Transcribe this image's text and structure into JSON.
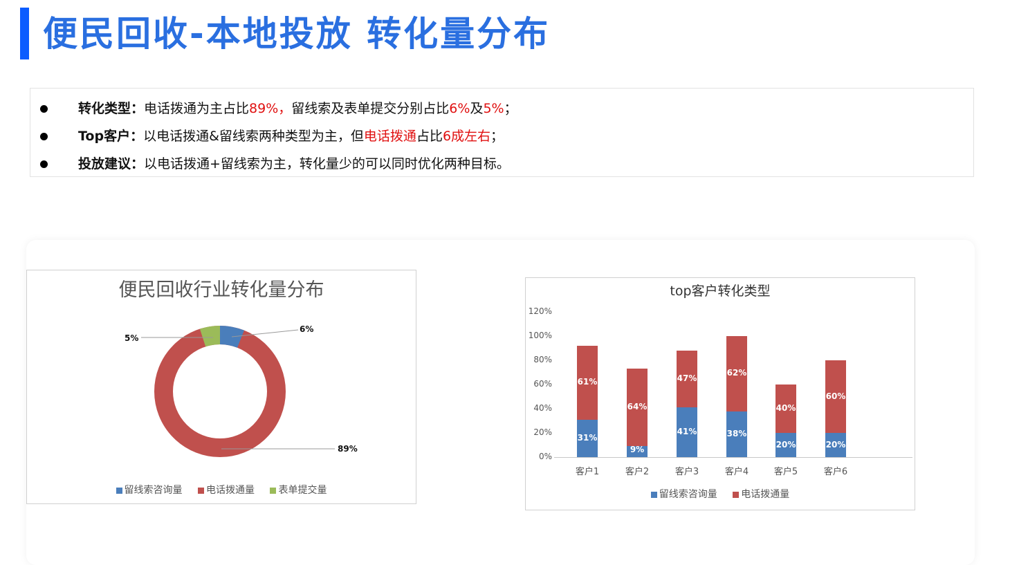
{
  "header": {
    "title": "便民回收-本地投放 转化量分布",
    "accent_color": "#0b5cff",
    "title_color": "#2a6fe0"
  },
  "summary": {
    "items": [
      {
        "label": "转化类型：",
        "segments": [
          {
            "text": "电话拨通为主占比",
            "highlight": false
          },
          {
            "text": "89%，",
            "highlight": true
          },
          {
            "text": "留线索及表单提交分别占比",
            "highlight": false
          },
          {
            "text": "6%",
            "highlight": true
          },
          {
            "text": "及",
            "highlight": false
          },
          {
            "text": "5%",
            "highlight": true
          },
          {
            "text": "；",
            "highlight": false
          }
        ]
      },
      {
        "label": "Top客户：",
        "segments": [
          {
            "text": "以电话拨通&留线索两种类型为主，但",
            "highlight": false
          },
          {
            "text": "电话拨通",
            "highlight": true
          },
          {
            "text": "占比",
            "highlight": false
          },
          {
            "text": "6成左右",
            "highlight": true
          },
          {
            "text": "；",
            "highlight": false
          }
        ]
      },
      {
        "label": "投放建议：",
        "segments": [
          {
            "text": "以电话拨通+留线索为主，转化量少的可以同时优化两种目标。",
            "highlight": false
          }
        ]
      }
    ],
    "highlight_color": "#e01010"
  },
  "chart_data": [
    {
      "type": "pie",
      "variant": "doughnut",
      "title": "便民回收行业转化量分布",
      "categories": [
        "留线索咨询量",
        "电话拨通量",
        "表单提交量"
      ],
      "values": [
        6,
        89,
        5
      ],
      "labels": [
        "6%",
        "89%",
        "5%"
      ],
      "colors": [
        "#4a7ebb",
        "#c0504d",
        "#9bbb59"
      ],
      "legend_position": "bottom"
    },
    {
      "type": "bar",
      "stacked": true,
      "title": "top客户转化类型",
      "categories": [
        "客户1",
        "客户2",
        "客户3",
        "客户4",
        "客户5",
        "客户6"
      ],
      "series": [
        {
          "name": "留线索咨询量",
          "values": [
            31,
            9,
            41,
            38,
            20,
            20
          ],
          "labels": [
            "31%",
            "9%",
            "41%",
            "38%",
            "20%",
            "20%"
          ],
          "color": "#4a7ebb"
        },
        {
          "name": "电话拨通量",
          "values": [
            61,
            64,
            47,
            62,
            40,
            60
          ],
          "labels": [
            "61%",
            "64%",
            "47%",
            "62%",
            "40%",
            "60%"
          ],
          "color": "#c0504d"
        }
      ],
      "yticks": [
        "0%",
        "20%",
        "40%",
        "60%",
        "80%",
        "100%",
        "120%"
      ],
      "ylim": [
        0,
        120
      ],
      "xlabel": "",
      "ylabel": "",
      "grid": false,
      "legend_position": "bottom"
    }
  ]
}
